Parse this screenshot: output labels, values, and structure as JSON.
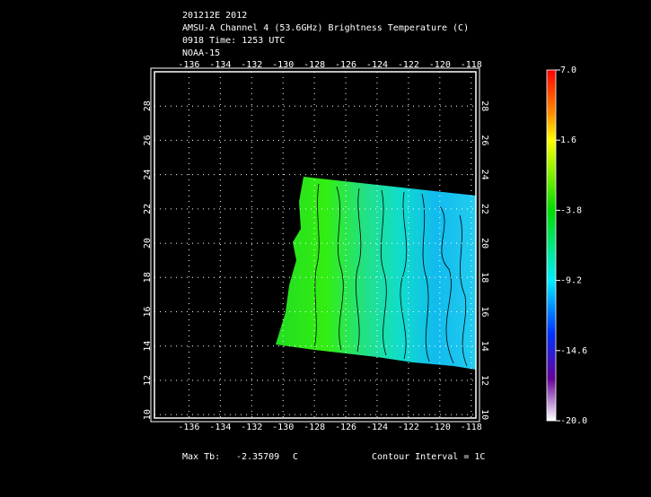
{
  "header": {
    "lines": [
      "201212E 2012",
      "AMSU-A Channel 4 (53.6GHz) Brightness Temperature (C)",
      "0918 Time: 1253 UTC",
      "NOAA-15"
    ]
  },
  "map": {
    "xlim": [
      -138.2,
      -117.7
    ],
    "ylim": [
      9.8,
      30
    ],
    "xticks": [
      -136,
      -134,
      -132,
      -130,
      -128,
      -126,
      -124,
      -122,
      -120,
      -118
    ],
    "yticks": [
      10,
      12,
      14,
      16,
      18,
      20,
      22,
      24,
      26,
      28
    ],
    "grid": true
  },
  "colorbar": {
    "lim": [
      -20,
      7
    ],
    "ticks": [
      {
        "value": 7,
        "label": "7.0"
      },
      1.6,
      -3.8,
      -9.2,
      -14.6,
      {
        "value": -20,
        "label": "-20.0"
      }
    ]
  },
  "footer": {
    "max_label": "Max Tb:",
    "max_value": "-2.35709",
    "unit": "C",
    "contour": "Contour Interval = 1C"
  }
}
